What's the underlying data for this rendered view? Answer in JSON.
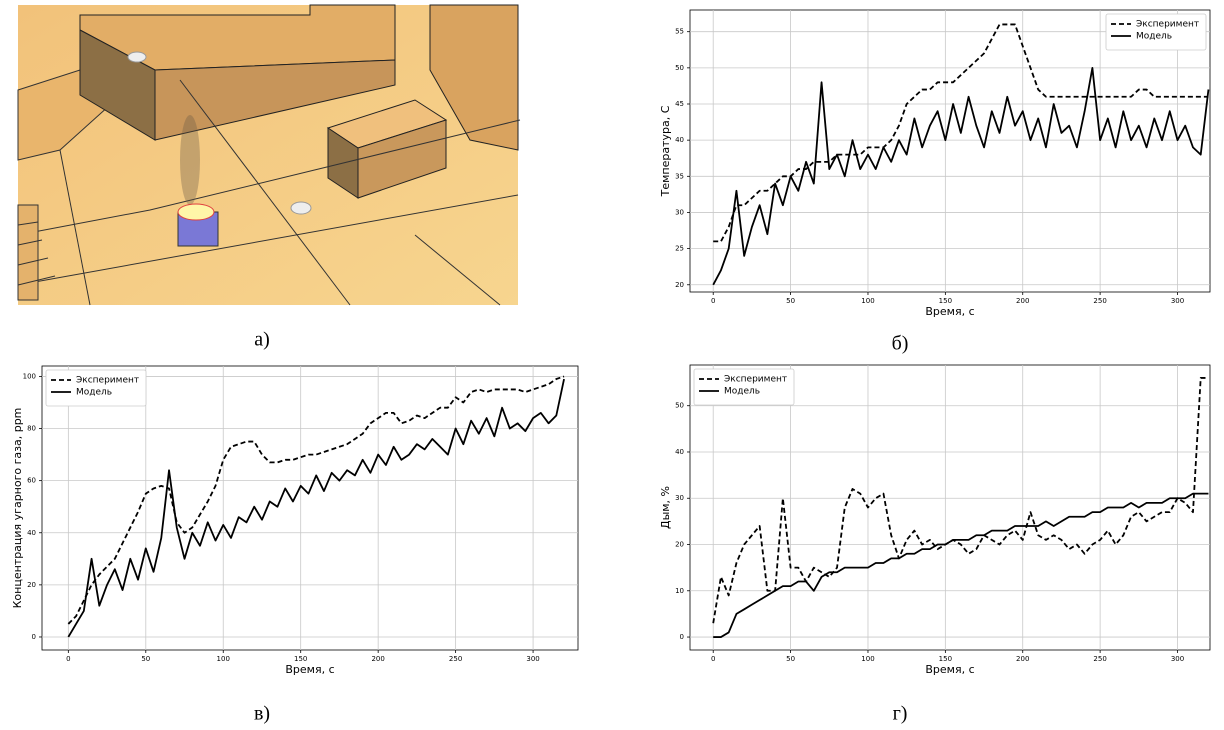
{
  "image_panel": {
    "label": "а)"
  },
  "chart_data": [
    {
      "type": "line",
      "panel_label": "б)",
      "xlabel": "Время, с",
      "ylabel": "Температура, С",
      "xlim": [
        -15,
        321
      ],
      "ylim": [
        19,
        58
      ],
      "xticks": [
        0,
        50,
        100,
        150,
        200,
        250,
        300
      ],
      "yticks": [
        20,
        25,
        30,
        35,
        40,
        45,
        50,
        55
      ],
      "grid": true,
      "legend": "upper right",
      "x": [
        0,
        5,
        10,
        15,
        20,
        25,
        30,
        35,
        40,
        45,
        50,
        55,
        60,
        65,
        70,
        75,
        80,
        85,
        90,
        95,
        100,
        105,
        110,
        115,
        120,
        125,
        130,
        135,
        140,
        145,
        150,
        155,
        160,
        165,
        170,
        175,
        180,
        185,
        190,
        195,
        200,
        205,
        210,
        215,
        220,
        225,
        230,
        235,
        240,
        245,
        250,
        255,
        260,
        265,
        270,
        275,
        280,
        285,
        290,
        295,
        300,
        305,
        310,
        315,
        320
      ],
      "series": [
        {
          "name": "Эксперимент",
          "color": "#000000",
          "dash": true,
          "values": [
            26,
            26,
            28,
            31,
            31,
            32,
            33,
            33,
            34,
            35,
            35,
            36,
            36,
            37,
            37,
            37,
            38,
            38,
            38,
            38,
            39,
            39,
            39,
            40,
            42,
            45,
            46,
            47,
            47,
            48,
            48,
            48,
            49,
            50,
            51,
            52,
            54,
            56,
            56,
            56,
            53,
            50,
            47,
            46,
            46,
            46,
            46,
            46,
            46,
            46,
            46,
            46,
            46,
            46,
            46,
            47,
            47,
            46,
            46,
            46,
            46,
            46,
            46,
            46,
            46
          ]
        },
        {
          "name": "Модель",
          "color": "#000000",
          "dash": false,
          "values": [
            20,
            22,
            25,
            33,
            24,
            28,
            31,
            27,
            34,
            31,
            35,
            33,
            37,
            34,
            48,
            36,
            38,
            35,
            40,
            36,
            38,
            36,
            39,
            37,
            40,
            38,
            43,
            39,
            42,
            44,
            40,
            45,
            41,
            46,
            42,
            39,
            44,
            41,
            46,
            42,
            44,
            40,
            43,
            39,
            45,
            41,
            42,
            39,
            44,
            50,
            40,
            43,
            39,
            44,
            40,
            42,
            39,
            43,
            40,
            44,
            40,
            42,
            39,
            38,
            47
          ]
        }
      ]
    },
    {
      "type": "line",
      "panel_label": "в)",
      "xlabel": "Время, с",
      "ylabel": "Концентрация угарного газа, ppm",
      "xlim": [
        -17,
        329
      ],
      "ylim": [
        -5,
        104
      ],
      "xticks": [
        0,
        50,
        100,
        150,
        200,
        250,
        300
      ],
      "yticks": [
        0,
        20,
        40,
        60,
        80,
        100
      ],
      "grid": true,
      "legend": "upper left",
      "x": [
        0,
        5,
        10,
        15,
        20,
        25,
        30,
        35,
        40,
        45,
        50,
        55,
        60,
        65,
        70,
        75,
        80,
        85,
        90,
        95,
        100,
        105,
        110,
        115,
        120,
        125,
        130,
        135,
        140,
        145,
        150,
        155,
        160,
        165,
        170,
        175,
        180,
        185,
        190,
        195,
        200,
        205,
        210,
        215,
        220,
        225,
        230,
        235,
        240,
        245,
        250,
        255,
        260,
        265,
        270,
        275,
        280,
        285,
        290,
        295,
        300,
        305,
        310,
        315,
        320
      ],
      "series": [
        {
          "name": "Эксперимент",
          "color": "#000000",
          "dash": true,
          "values": [
            5,
            8,
            14,
            20,
            24,
            27,
            30,
            36,
            42,
            48,
            55,
            57,
            58,
            57,
            44,
            40,
            42,
            47,
            52,
            58,
            68,
            73,
            74,
            75,
            75,
            70,
            67,
            67,
            68,
            68,
            69,
            70,
            70,
            71,
            72,
            73,
            74,
            76,
            78,
            82,
            84,
            86,
            86,
            82,
            83,
            85,
            84,
            86,
            88,
            88,
            92,
            90,
            94,
            95,
            94,
            95,
            95,
            95,
            95,
            94,
            95,
            96,
            97,
            99,
            100
          ]
        },
        {
          "name": "Модель",
          "color": "#000000",
          "dash": false,
          "values": [
            0,
            5,
            10,
            30,
            12,
            20,
            26,
            18,
            30,
            22,
            34,
            25,
            38,
            64,
            42,
            30,
            40,
            35,
            44,
            37,
            43,
            38,
            46,
            44,
            50,
            45,
            52,
            50,
            57,
            52,
            58,
            55,
            62,
            56,
            63,
            60,
            64,
            62,
            68,
            63,
            70,
            66,
            73,
            68,
            70,
            74,
            72,
            76,
            73,
            70,
            80,
            74,
            83,
            78,
            84,
            77,
            88,
            80,
            82,
            79,
            84,
            86,
            82,
            85,
            99
          ]
        }
      ]
    },
    {
      "type": "line",
      "panel_label": "г)",
      "xlabel": "Время, с",
      "ylabel": "Дым, %",
      "xlim": [
        -15,
        321
      ],
      "ylim": [
        -2.8,
        58.8
      ],
      "xticks": [
        0,
        50,
        100,
        150,
        200,
        250,
        300
      ],
      "yticks": [
        0,
        10,
        20,
        30,
        40,
        50
      ],
      "grid": true,
      "legend": "upper left",
      "x": [
        0,
        5,
        10,
        15,
        20,
        25,
        30,
        35,
        40,
        45,
        50,
        55,
        60,
        65,
        70,
        75,
        80,
        85,
        90,
        95,
        100,
        105,
        110,
        115,
        120,
        125,
        130,
        135,
        140,
        145,
        150,
        155,
        160,
        165,
        170,
        175,
        180,
        185,
        190,
        195,
        200,
        205,
        210,
        215,
        220,
        225,
        230,
        235,
        240,
        245,
        250,
        255,
        260,
        265,
        270,
        275,
        280,
        285,
        290,
        295,
        300,
        305,
        310,
        315,
        320
      ],
      "series": [
        {
          "name": "Эксперимент",
          "color": "#000000",
          "dash": true,
          "values": [
            3,
            13,
            9,
            16,
            20,
            22,
            24,
            10,
            10,
            30,
            15,
            15,
            12,
            15,
            14,
            13,
            15,
            28,
            32,
            31,
            28,
            30,
            31,
            22,
            17,
            21,
            23,
            20,
            21,
            19,
            20,
            21,
            20,
            18,
            19,
            22,
            21,
            20,
            22,
            23,
            21,
            27,
            22,
            21,
            22,
            21,
            19,
            20,
            18,
            20,
            21,
            23,
            20,
            22,
            26,
            27,
            25,
            26,
            27,
            27,
            30,
            29,
            27,
            56,
            56
          ]
        },
        {
          "name": "Модель",
          "color": "#000000",
          "dash": false,
          "values": [
            0,
            0,
            1,
            5,
            6,
            7,
            8,
            9,
            10,
            11,
            11,
            12,
            12,
            10,
            13,
            14,
            14,
            15,
            15,
            15,
            15,
            16,
            16,
            17,
            17,
            18,
            18,
            19,
            19,
            20,
            20,
            21,
            21,
            21,
            22,
            22,
            23,
            23,
            23,
            24,
            24,
            24,
            24,
            25,
            24,
            25,
            26,
            26,
            26,
            27,
            27,
            28,
            28,
            28,
            29,
            28,
            29,
            29,
            29,
            30,
            30,
            30,
            31,
            31,
            31
          ]
        }
      ]
    }
  ]
}
